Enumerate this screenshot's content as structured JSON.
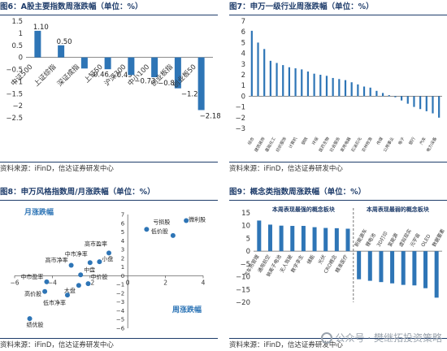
{
  "colors": {
    "bar": "#2e75b6",
    "title": "#1f3d6b",
    "watermark": "#9aa3ad"
  },
  "source": "资料来源：iFinD，信达证券研发中心",
  "watermark": "公众号 · 樊继拓投资策略",
  "chart_data": [
    {
      "type": "bar",
      "title": "图6：A股主要指数周涨跌幅（单位：%）",
      "categories": [
        "中证500",
        "上证综指",
        "深证成指",
        "上证50",
        "沪深300",
        "中小100",
        "创业板指",
        "创业板50"
      ],
      "values": [
        1.1,
        0.5,
        -0.46,
        -0.49,
        -0.73,
        -0.82,
        -1.28,
        -2.18
      ],
      "data_labels": [
        "1.10",
        "0.50",
        "−0.46",
        "−0.49",
        "−0.73",
        "−0.82",
        "−1.28",
        "−2.18"
      ],
      "ylim": [
        -2.5,
        1.5
      ],
      "yticks": [
        "1.5",
        "1",
        "0.5",
        "0",
        "−0.5",
        "−1",
        "−1.5",
        "−2",
        "−2.5"
      ]
    },
    {
      "type": "bar",
      "title": "图7：申万一级行业周涨跌幅（单位：%）",
      "categories": [
        "综合",
        "建筑装饰",
        "国防军工",
        "有色金属",
        "基础化工",
        "纺织服饰",
        "计算机",
        "钢铁",
        "轻工制造",
        "环保",
        "机械设备",
        "医药生物",
        "通信",
        "社会服务",
        "家用电器",
        "石油石化",
        "非银金融",
        "交通运输",
        "农林牧渔",
        "传媒",
        "公用事业",
        "电子",
        "银行",
        "房地产",
        "汽车",
        "电力设备",
        "商贸零售",
        "食品饮料",
        "建筑材料",
        "美容护理",
        "煤炭"
      ],
      "values": [
        6.1,
        5.0,
        4.4,
        3.3,
        3.1,
        2.9,
        2.7,
        2.6,
        2.5,
        2.3,
        2.1,
        2.0,
        1.9,
        1.7,
        1.6,
        1.5,
        1.3,
        1.1,
        0.9,
        0.8,
        0.5,
        0.3,
        0.1,
        -0.1,
        -0.4,
        -0.7,
        -1.0,
        -1.2,
        -1.4,
        -1.6,
        -2.0
      ],
      "xtick_labels": [
        "综合",
        "建筑装饰",
        "基础化工",
        "纺织服饰",
        "计算机",
        "钢铁",
        "环保",
        "医药生物",
        "社会服务",
        "家用电器",
        "石油石化",
        "农林牧渔",
        "传媒",
        "公用事业",
        "电子",
        "银行",
        "汽车",
        "电力设备"
      ],
      "ylim": [
        -3,
        7
      ],
      "yticks": [
        "7",
        "6",
        "5",
        "4",
        "3",
        "2",
        "1",
        "0",
        "−1",
        "−2",
        "−3"
      ]
    },
    {
      "type": "scatter",
      "title": "图8：申万风格指数周/月涨跌幅（单位：%）",
      "xlabel": "周涨跌幅",
      "ylabel": "月涨跌幅",
      "xlim": [
        -6,
        4
      ],
      "ylim": [
        -6,
        7
      ],
      "xticks": [
        "−6",
        "−4",
        "−2",
        "0",
        "2",
        "4"
      ],
      "yticks": [
        "7",
        "6",
        "5",
        "4",
        "3",
        "2",
        "1",
        "0",
        "−1",
        "−2",
        "−3",
        "−4",
        "−5",
        "−6"
      ],
      "points": [
        {
          "label": "亏损股",
          "x": 1.0,
          "y": 5.3
        },
        {
          "label": "低价股",
          "x": 2.4,
          "y": 4.6
        },
        {
          "label": "微利股",
          "x": 3.1,
          "y": 6.3
        },
        {
          "label": "高市盈率",
          "x": -1.0,
          "y": 2.6
        },
        {
          "label": "小盘",
          "x": -1.5,
          "y": 1.6
        },
        {
          "label": "中市净率",
          "x": -2.0,
          "y": 1.5
        },
        {
          "label": "中盘",
          "x": -2.5,
          "y": 0.1
        },
        {
          "label": "中价股",
          "x": -2.1,
          "y": -0.9
        },
        {
          "label": "大盘",
          "x": -2.6,
          "y": -1.1
        },
        {
          "label": "高市净率",
          "x": -3.0,
          "y": 1.2
        },
        {
          "label": "中市盈率",
          "x": -4.3,
          "y": -0.7
        },
        {
          "label": "高价股",
          "x": -4.4,
          "y": -1.8
        },
        {
          "label": "低市净率",
          "x": -3.2,
          "y": -2.2
        },
        {
          "label": "绩优股",
          "x": -5.2,
          "y": -4.9
        }
      ]
    },
    {
      "type": "bar",
      "title": "图9：概念类指数周涨跌幅（单位：%）",
      "annotations": [
        "本周表现最强的概念板块",
        "本周表现最弱的概念板块"
      ],
      "categories": [
        "汽车热管理",
        "通用航空",
        "钠离子电池",
        "无人驾驶",
        "数字孪生",
        "储能",
        "光伏",
        "CRO",
        "精准医疗",
        "新能源车",
        "锂电池",
        "3D打印",
        "氢能源",
        "虚拟现实",
        "元宇宙",
        "OLED",
        "数据要素"
      ],
      "xtick_labels": [
        "汽车热管理",
        "通用航空",
        "钠离子电池",
        "无人驾驶",
        "数字孪生",
        "储能",
        "光伏",
        "CRO概念",
        "精准医疗",
        "新能源车",
        "锂电池",
        "3D打印",
        "氢能源",
        "虚拟现实",
        "元宇宙",
        "OLED",
        "数据要素"
      ],
      "values": [
        12.0,
        10.4,
        10.0,
        9.9,
        9.9,
        9.4,
        9.1,
        9.0,
        8.8,
        -11.0,
        -11.6,
        -12.1,
        -12.6,
        -13.2,
        -13.4,
        -14.5,
        -18.2
      ],
      "ylim": [
        -20,
        15
      ],
      "yticks": [
        "15",
        "10",
        "5",
        "0",
        "−5",
        "−10",
        "−15",
        "−20"
      ]
    }
  ]
}
